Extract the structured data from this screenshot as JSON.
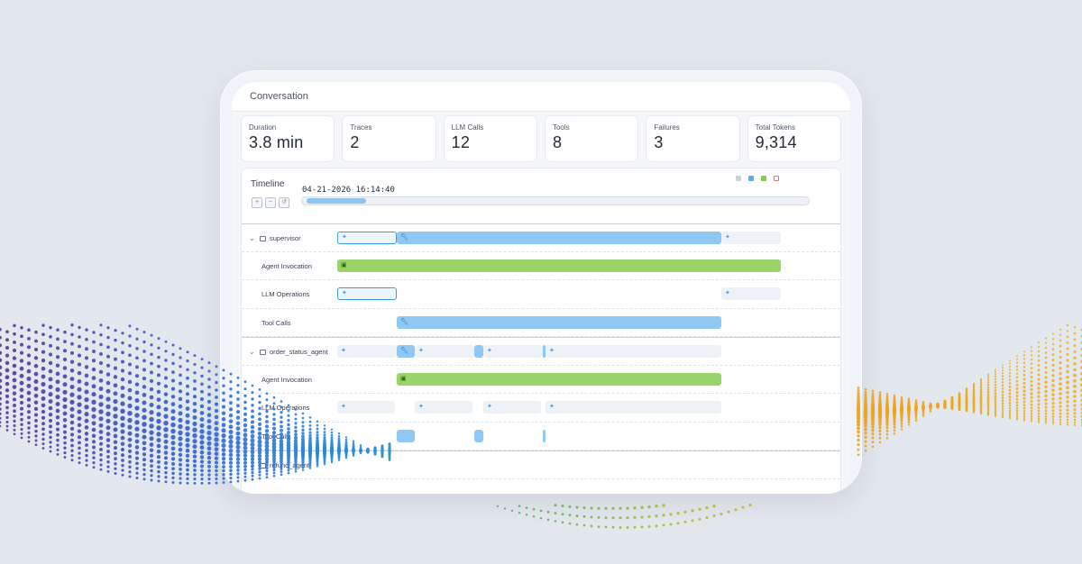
{
  "header": {
    "title": "Conversation"
  },
  "stats": [
    {
      "label": "Duration",
      "value": "3.8 min"
    },
    {
      "label": "Traces",
      "value": "2"
    },
    {
      "label": "LLM Calls",
      "value": "12"
    },
    {
      "label": "Tools",
      "value": "8"
    },
    {
      "label": "Failures",
      "value": "3"
    },
    {
      "label": "Total Tokens",
      "value": "9,314"
    }
  ],
  "timeline": {
    "title": "Timeline",
    "timestamp": "04-21-2026 16:14:40",
    "legend_colors": [
      "#c9d0da",
      "#5aaee8",
      "#84cc4a",
      "#e07575"
    ],
    "zoom_icons": [
      "zoom-in-icon",
      "zoom-out-icon",
      "reset-icon"
    ],
    "rows": [
      {
        "label": "supervisor",
        "kind": "group"
      },
      {
        "label": "Agent Invocation",
        "kind": "sub"
      },
      {
        "label": "LLM Operations",
        "kind": "sub"
      },
      {
        "label": "Tool Calls",
        "kind": "sub"
      },
      {
        "label": "order_status_agent",
        "kind": "group"
      },
      {
        "label": "Agent Invocation",
        "kind": "sub"
      },
      {
        "label": "LLM Operations",
        "kind": "sub"
      },
      {
        "label": "Tool Calls",
        "kind": "sub"
      },
      {
        "label": "refund_agent",
        "kind": "group"
      }
    ]
  },
  "colors": {
    "llm": "#eef2f7",
    "tool": "#8ec8f3",
    "agent": "#9ad36a",
    "accent": "#3a9be0"
  }
}
